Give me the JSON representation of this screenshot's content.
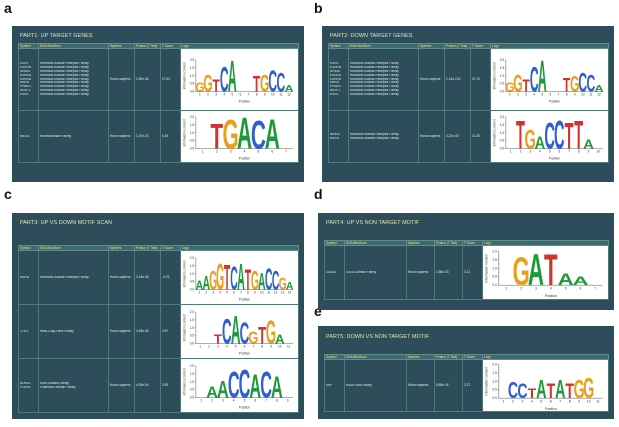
{
  "panel_letters": {
    "a": "a",
    "b": "b",
    "c": "c",
    "d": "d",
    "e": "e"
  },
  "headers": {
    "symbol": "Symbol",
    "dbd": "DNA BindDom",
    "species": "Species",
    "pvalue": "Pvalue (T Test)",
    "tscore": "T Score",
    "logo": "Logo"
  },
  "logo_axis": {
    "ylabel": "Information content",
    "xlabel": "Position"
  },
  "panels": {
    "a": {
      "title": "PART1: UP TARGET GENES",
      "rows": [
        {
          "symbols": [
            "ESR1",
            "ESRRB",
            "NR4A2",
            "ESRRG",
            "ESRRA",
            "RARA",
            "PPARG",
            "NR2F1",
            "ESR2"
          ],
          "families": [
            "Hormone-nuclear Receptor Family",
            "Hormone-nuclear Receptor Family",
            "Hormone-nuclear Receptor Family",
            "Hormone-nuclear Receptor Family",
            "Hormone-nuclear Receptor Family",
            "Hormone-nuclear Receptor Family",
            "Hormone-nuclear Receptor Family",
            "Hormone-nuclear Receptor Family",
            "Hormone-nuclear Receptor Family"
          ],
          "species": "Homo sapiens",
          "pvalue": "1.89e-08",
          "tscore": "17.53"
        },
        {
          "symbols": [
            "MEIS1"
          ],
          "families": [
            "Homeodomain Family"
          ],
          "species": "Homo sapiens",
          "pvalue": "1.37e-03",
          "tscore": "6.45"
        }
      ]
    },
    "b": {
      "title": "PART2: DOWN TARGET GENES",
      "rows": [
        {
          "symbols": [
            "ESR1",
            "ESRRB",
            "NR4A2",
            "ESRRG",
            "ESRRA",
            "RARA",
            "PPARG",
            "NR2F1",
            "ESR2"
          ],
          "families": [
            "Hormone-nuclear Receptor Family",
            "Hormone-nuclear Receptor Family",
            "Hormone-nuclear Receptor Family",
            "Hormone-nuclear Receptor Family",
            "Hormone-nuclear Receptor Family",
            "Hormone-nuclear Receptor Family",
            "Hormone-nuclear Receptor Family",
            "Hormone-nuclear Receptor Family",
            "Hormone-nuclear Receptor Family"
          ],
          "species": "Homo sapiens",
          "pvalue": "1.14e-130",
          "tscore": "37.12"
        },
        {
          "symbols": [
            "NR4A1",
            "RXRG"
          ],
          "families": [
            "Hormone-nuclear Receptor Family",
            "Hormone-nuclear Receptor Family"
          ],
          "species": "Homo sapiens",
          "pvalue": "3.22e-49",
          "tscore": "11.35"
        }
      ]
    },
    "c": {
      "title": "PART3: UP VS DOWN MOTIF SCAN",
      "rows": [
        {
          "symbols": [
            "RARA"
          ],
          "families": [
            "Hormone-nuclear Receptor Family"
          ],
          "species": "Homo sapiens",
          "pvalue": "2.14e-08",
          "tscore": "-4.76"
        },
        {
          "symbols": [
            "TFE3"
          ],
          "families": [
            "Helix-Loop-Helix Family"
          ],
          "species": "Homo sapiens",
          "pvalue": "4.48e-05",
          "tscore": "4.67"
        },
        {
          "symbols": [
            "RUNX1",
            "FOXH1"
          ],
          "families": [
            "Runt Domain Family",
            "Forkhead Domain Family"
          ],
          "species": "Homo sapiens",
          "pvalue": "4.03e-04",
          "tscore": "3.93"
        }
      ]
    },
    "d": {
      "title": "PART4: UP VS NON TARGET MOTIF",
      "rows": [
        {
          "symbols": [
            "GATA4"
          ],
          "families": [
            "GATA Domain Family"
          ],
          "species": "Homo sapiens",
          "pvalue": "1.86e-03",
          "tscore": "3.11"
        }
      ]
    },
    "e": {
      "title": "PART5: DOWN VS NON TARGET MOTIF",
      "rows": [
        {
          "symbols": [
            "SRF"
          ],
          "families": [
            "MADS Box Family"
          ],
          "species": "Homo sapiens",
          "pvalue": "8.85e-04",
          "tscore": "3.27"
        }
      ]
    }
  },
  "motifs": {
    "a0": [
      [
        "G",
        "#e8a020",
        0.3
      ],
      [
        "G",
        "#e8a020",
        0.55
      ],
      [
        "T",
        "#d0342c",
        0.4
      ],
      [
        "C",
        "#2f5fd0",
        0.8
      ],
      [
        "A",
        "#1f9a3a",
        1.0
      ],
      [
        "",
        0,
        0
      ],
      [
        "",
        0,
        0
      ],
      [
        "T",
        "#d0342c",
        0.5
      ],
      [
        "G",
        "#e8a020",
        0.55
      ],
      [
        "C",
        "#2f5fd0",
        0.7
      ],
      [
        "C",
        "#2f5fd0",
        0.6
      ],
      [
        "A",
        "#1f9a3a",
        0.2
      ]
    ],
    "a1": [
      [
        "",
        0,
        0
      ],
      [
        "T",
        "#d0342c",
        0.8
      ],
      [
        "G",
        "#e8a020",
        0.95
      ],
      [
        "A",
        "#1f9a3a",
        1.0
      ],
      [
        "C",
        "#2f5fd0",
        0.9
      ],
      [
        "A",
        "#1f9a3a",
        0.95
      ],
      [
        "",
        0,
        0
      ]
    ],
    "b0": [
      [
        "G",
        "#e8a020",
        0.3
      ],
      [
        "G",
        "#e8a020",
        0.55
      ],
      [
        "T",
        "#d0342c",
        0.4
      ],
      [
        "C",
        "#2f5fd0",
        0.8
      ],
      [
        "A",
        "#1f9a3a",
        1.0
      ],
      [
        "",
        0,
        0
      ],
      [
        "",
        0,
        0
      ],
      [
        "T",
        "#d0342c",
        0.45
      ],
      [
        "G",
        "#e8a020",
        0.5
      ],
      [
        "C",
        "#2f5fd0",
        0.6
      ],
      [
        "C",
        "#2f5fd0",
        0.55
      ],
      [
        "A",
        "#1f9a3a",
        0.2
      ]
    ],
    "b1": [
      [
        "",
        0,
        0
      ],
      [
        "T",
        "#d0342c",
        0.9
      ],
      [
        "G",
        "#e8a020",
        0.6
      ],
      [
        "A",
        "#1f9a3a",
        0.4
      ],
      [
        "C",
        "#2f5fd0",
        0.85
      ],
      [
        "C",
        "#2f5fd0",
        0.9
      ],
      [
        "T",
        "#d0342c",
        0.85
      ],
      [
        "T",
        "#d0342c",
        0.9
      ],
      [
        "A",
        "#1f9a3a",
        0.3
      ],
      [
        "",
        0,
        0
      ]
    ],
    "c0": [
      [
        "A",
        "#1f9a3a",
        0.3
      ],
      [
        "A",
        "#1f9a3a",
        0.45
      ],
      [
        "G",
        "#e8a020",
        0.6
      ],
      [
        "G",
        "#e8a020",
        0.85
      ],
      [
        "T",
        "#d0342c",
        0.8
      ],
      [
        "C",
        "#2f5fd0",
        0.75
      ],
      [
        "A",
        "#1f9a3a",
        0.85
      ],
      [
        "T",
        "#d0342c",
        0.65
      ],
      [
        "G",
        "#e8a020",
        0.6
      ],
      [
        "A",
        "#1f9a3a",
        0.55
      ],
      [
        "C",
        "#2f5fd0",
        0.7
      ],
      [
        "C",
        "#2f5fd0",
        0.6
      ],
      [
        "G",
        "#e8a020",
        0.4
      ],
      [
        "A",
        "#1f9a3a",
        0.25
      ]
    ],
    "c1": [
      [
        "",
        0,
        0
      ],
      [
        "",
        0,
        0
      ],
      [
        "T",
        "#d0342c",
        0.3
      ],
      [
        "C",
        "#2f5fd0",
        0.8
      ],
      [
        "A",
        "#1f9a3a",
        0.9
      ],
      [
        "C",
        "#2f5fd0",
        0.7
      ],
      [
        "G",
        "#e8a020",
        0.4
      ],
      [
        "T",
        "#d0342c",
        0.55
      ],
      [
        "G",
        "#e8a020",
        0.75
      ],
      [
        "A",
        "#1f9a3a",
        0.3
      ],
      [
        "",
        0,
        0
      ]
    ],
    "c2": [
      [
        "",
        0,
        0
      ],
      [
        "A",
        "#1f9a3a",
        0.35
      ],
      [
        "A",
        "#1f9a3a",
        0.55
      ],
      [
        "C",
        "#2f5fd0",
        0.85
      ],
      [
        "C",
        "#2f5fd0",
        0.9
      ],
      [
        "A",
        "#1f9a3a",
        0.75
      ],
      [
        "C",
        "#2f5fd0",
        0.85
      ],
      [
        "A",
        "#1f9a3a",
        0.7
      ],
      [
        "",
        0,
        0
      ]
    ],
    "d0": [
      [
        "",
        0,
        0
      ],
      [
        "G",
        "#e8a020",
        0.85
      ],
      [
        "A",
        "#1f9a3a",
        0.95
      ],
      [
        "T",
        "#d0342c",
        0.95
      ],
      [
        "A",
        "#1f9a3a",
        0.35
      ],
      [
        "A",
        "#1f9a3a",
        0.25
      ],
      [
        "",
        0,
        0
      ]
    ],
    "e0": [
      [
        "",
        0,
        0
      ],
      [
        "C",
        "#2f5fd0",
        0.5
      ],
      [
        "C",
        "#2f5fd0",
        0.45
      ],
      [
        "T",
        "#d0342c",
        0.3
      ],
      [
        "A",
        "#1f9a3a",
        0.55
      ],
      [
        "T",
        "#d0342c",
        0.45
      ],
      [
        "A",
        "#1f9a3a",
        0.55
      ],
      [
        "T",
        "#d0342c",
        0.45
      ],
      [
        "G",
        "#e8a020",
        0.55
      ],
      [
        "G",
        "#e8a020",
        0.6
      ],
      [
        "",
        0,
        0
      ]
    ]
  }
}
